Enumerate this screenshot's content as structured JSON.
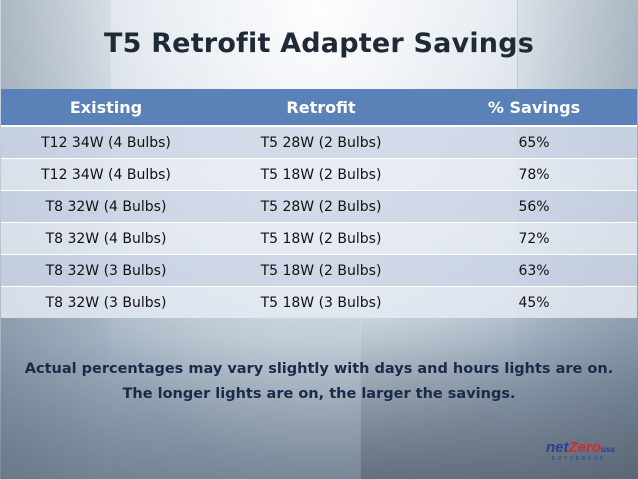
{
  "slide": {
    "title": "T5 Retrofit Adapter Savings"
  },
  "table": {
    "headers": [
      "Existing",
      "Retrofit",
      "% Savings"
    ],
    "rows": [
      [
        "T12 34W (4 Bulbs)",
        "T5 28W (2 Bulbs)",
        "65%"
      ],
      [
        "T12 34W (4 Bulbs)",
        "T5 18W (2 Bulbs)",
        "78%"
      ],
      [
        "T8 32W (4 Bulbs)",
        "T5 28W (2 Bulbs)",
        "56%"
      ],
      [
        "T8 32W (4 Bulbs)",
        "T5 18W (2 Bulbs)",
        "72%"
      ],
      [
        "T8 32W (3 Bulbs)",
        "T5 18W (2 Bulbs)",
        "63%"
      ],
      [
        "T8 32W (3 Bulbs)",
        "T5 18W (3 Bulbs)",
        "45%"
      ]
    ]
  },
  "note": {
    "line1": "Actual percentages may vary slightly with days and hours lights are on.",
    "line2": "The longer lights are on, the larger the savings."
  },
  "logo": {
    "part1": "net",
    "part2": "Zero",
    "tld": "usa",
    "tagline": "FOTVERSUP"
  },
  "colors": {
    "header_bg": "#5b82b8",
    "header_text": "#ffffff",
    "row_odd": "#cdd6e6",
    "row_even": "#e6ebf4",
    "title_text": "#1f2a36",
    "note_text": "#1c2a4a",
    "logo_blue": "#2b3f8a",
    "logo_red": "#d22b2b"
  }
}
